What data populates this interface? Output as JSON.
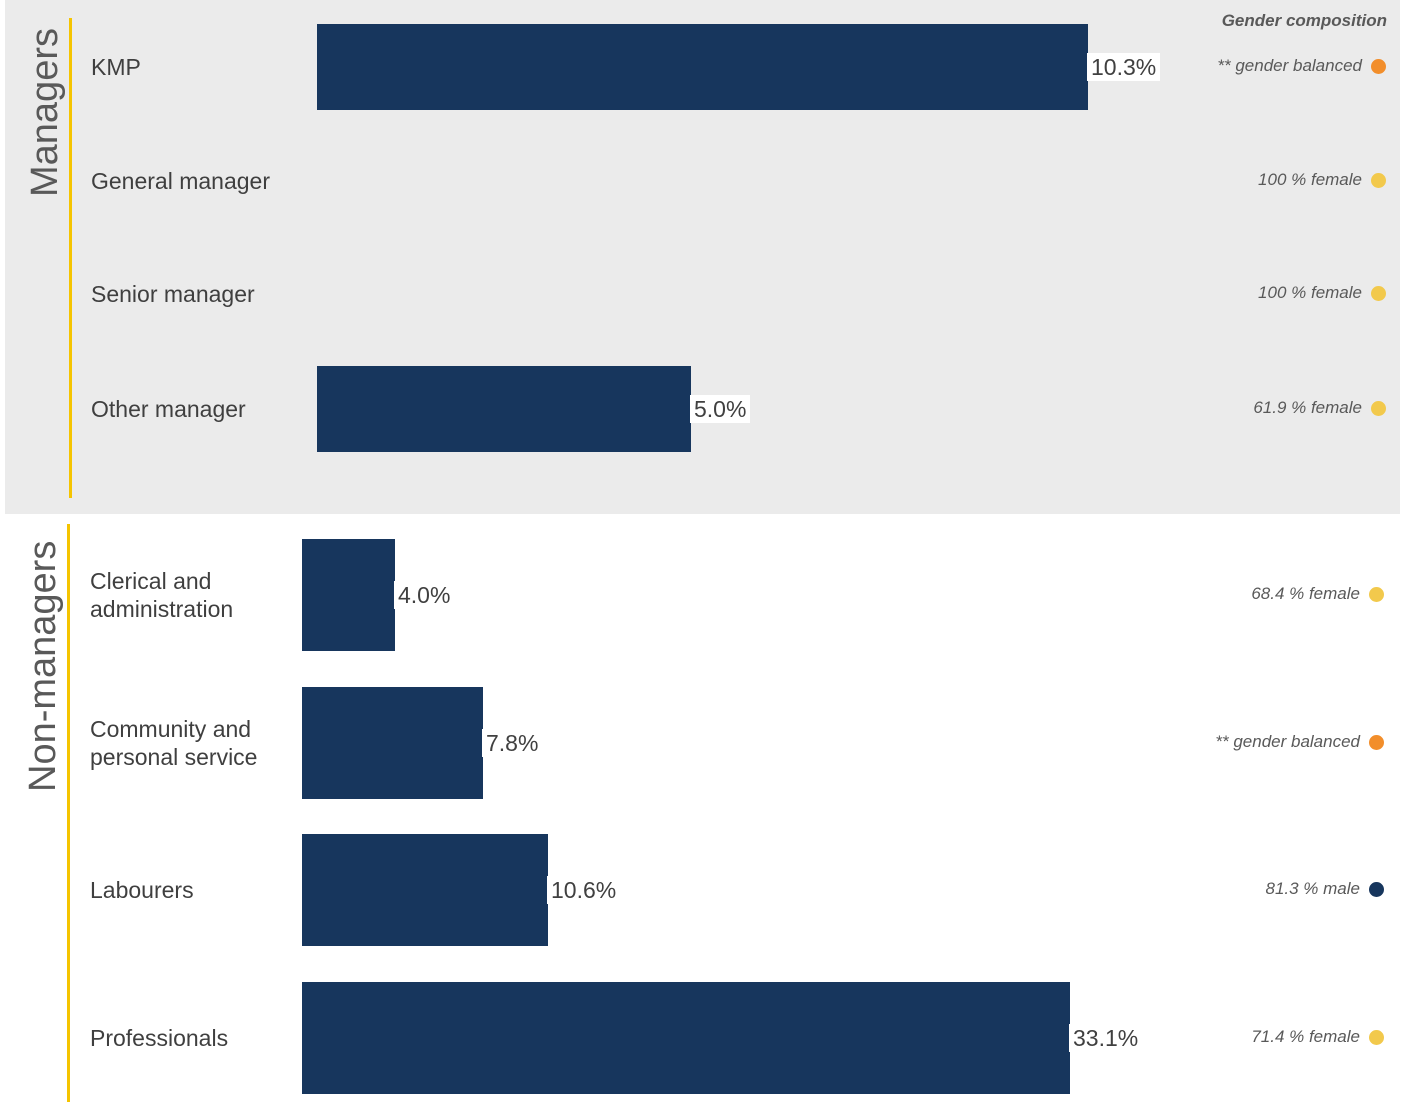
{
  "header": {
    "gender_composition": "Gender composition"
  },
  "colors": {
    "bar": "#17365d",
    "manager_panel": "#ebebeb",
    "group_rule": "#f5c400",
    "female_dot": "#f2c94c",
    "balanced_dot": "#f28e2b",
    "male_dot": "#17365d"
  },
  "chart_data": {
    "type": "bar",
    "orientation": "horizontal",
    "unit": "%",
    "groups": [
      {
        "name": "Managers",
        "categories": [
          {
            "label": "KMP",
            "value": 10.3,
            "value_label": "10.3%",
            "composition": "** gender balanced",
            "composition_type": "balanced"
          },
          {
            "label": "General manager",
            "value": null,
            "value_label": "",
            "composition": "100 % female",
            "composition_type": "female"
          },
          {
            "label": "Senior manager",
            "value": null,
            "value_label": "",
            "composition": "100 % female",
            "composition_type": "female"
          },
          {
            "label": "Other manager",
            "value": 5.0,
            "value_label": "5.0%",
            "composition": "61.9 % female",
            "composition_type": "female"
          }
        ]
      },
      {
        "name": "Non-managers",
        "categories": [
          {
            "label": "Clerical and administration",
            "value": 4.0,
            "value_label": "4.0%",
            "composition": "68.4 % female",
            "composition_type": "female"
          },
          {
            "label": "Community and personal service",
            "value": 7.8,
            "value_label": "7.8%",
            "composition": "** gender balanced",
            "composition_type": "balanced"
          },
          {
            "label": "Labourers",
            "value": 10.6,
            "value_label": "10.6%",
            "composition": "81.3 % male",
            "composition_type": "male"
          },
          {
            "label": "Professionals",
            "value": 33.1,
            "value_label": "33.1%",
            "composition": "71.4 % female",
            "composition_type": "female"
          }
        ]
      }
    ]
  }
}
